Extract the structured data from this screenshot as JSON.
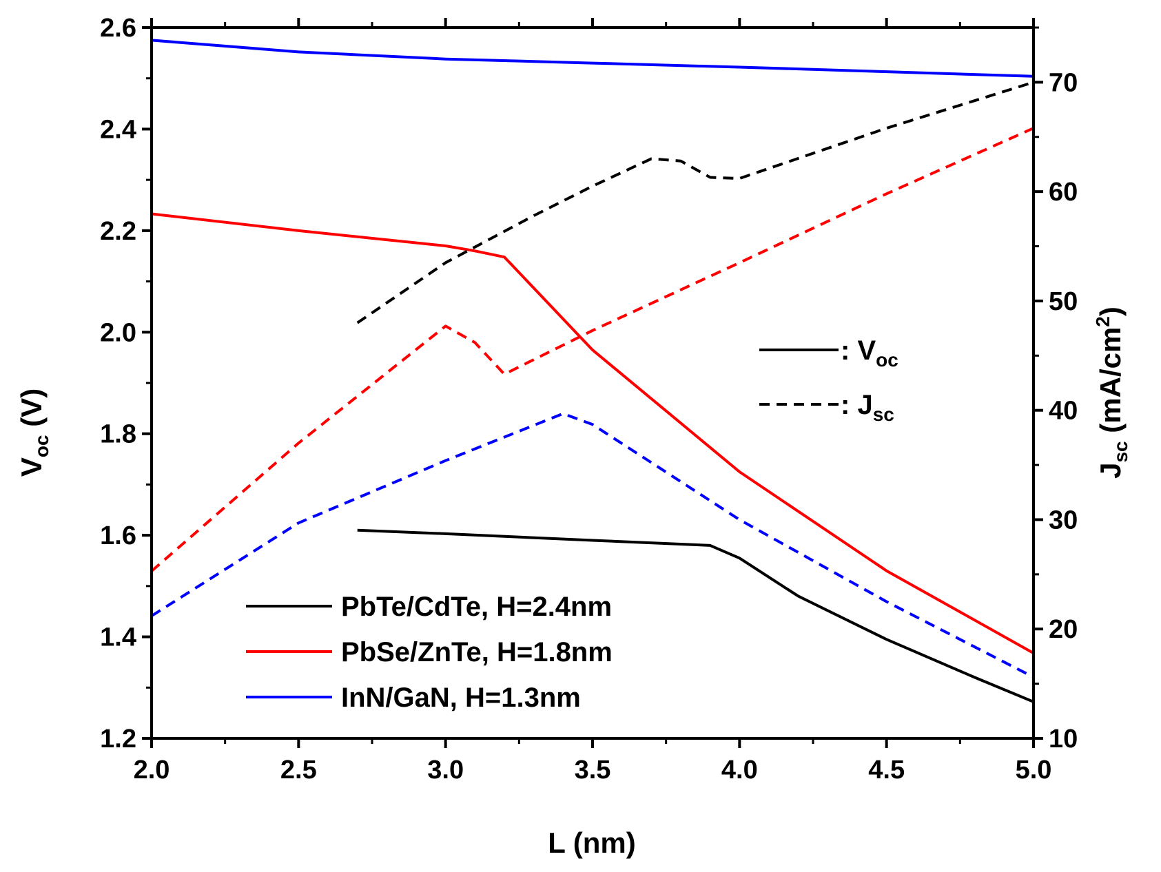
{
  "chart_data": {
    "type": "line",
    "dual_axis": true,
    "xlabel": "L (nm)",
    "ylabel_left": {
      "main": "V",
      "sub": "oc",
      "unit": " (V)"
    },
    "ylabel_right": {
      "main": "J",
      "sub": "sc",
      "unit_pre": " (mA/cm",
      "sup": "2",
      "unit_post": ")"
    },
    "xlim": [
      2.0,
      5.0
    ],
    "ylim_left": [
      1.2,
      2.6
    ],
    "ylim_right": [
      10,
      75
    ],
    "x_ticks": [
      "2.0",
      "2.5",
      "3.0",
      "3.5",
      "4.0",
      "4.5",
      "5.0"
    ],
    "y_left_ticks": [
      "1.2",
      "1.4",
      "1.6",
      "1.8",
      "2.0",
      "2.2",
      "2.4",
      "2.6"
    ],
    "y_right_ticks": [
      "10",
      "20",
      "30",
      "40",
      "50",
      "60",
      "70"
    ],
    "series": [
      {
        "name": "PbTe/CdTe, H=2.4nm",
        "quantity": "Voc",
        "axis": "left",
        "style": "solid",
        "color": "#000000",
        "x": [
          2.7,
          3.0,
          3.5,
          3.9,
          4.0,
          4.2,
          4.5,
          4.8,
          5.0
        ],
        "y": [
          1.61,
          1.603,
          1.59,
          1.58,
          1.555,
          1.48,
          1.395,
          1.32,
          1.272
        ]
      },
      {
        "name": "PbSe/ZnTe, H=1.8nm",
        "quantity": "Voc",
        "axis": "left",
        "style": "solid",
        "color": "#ff0000",
        "x": [
          2.0,
          2.5,
          3.0,
          3.1,
          3.2,
          3.5,
          4.0,
          4.5,
          5.0
        ],
        "y": [
          2.233,
          2.2,
          2.17,
          2.16,
          2.148,
          1.965,
          1.725,
          1.53,
          1.368
        ]
      },
      {
        "name": "InN/GaN, H=1.3nm",
        "quantity": "Voc",
        "axis": "left",
        "style": "solid",
        "color": "#0000ff",
        "x": [
          2.0,
          2.5,
          3.0,
          3.5,
          4.0,
          4.5,
          5.0
        ],
        "y": [
          2.575,
          2.552,
          2.538,
          2.53,
          2.522,
          2.513,
          2.504
        ]
      },
      {
        "name": "PbTe/CdTe, H=2.4nm",
        "quantity": "Jsc",
        "axis": "right",
        "style": "dashed",
        "color": "#000000",
        "x": [
          2.7,
          3.0,
          3.3,
          3.5,
          3.7,
          3.8,
          3.9,
          4.0,
          4.5,
          5.0
        ],
        "y": [
          48,
          53.5,
          57.8,
          60.5,
          63,
          62.8,
          61.3,
          61.2,
          65.8,
          70
        ]
      },
      {
        "name": "PbSe/ZnTe, H=1.8nm",
        "quantity": "Jsc",
        "axis": "right",
        "style": "dashed",
        "color": "#ff0000",
        "x": [
          2.0,
          2.5,
          3.0,
          3.1,
          3.2,
          3.5,
          4.0,
          4.5,
          5.0
        ],
        "y": [
          25.3,
          37,
          47.7,
          46.2,
          43.3,
          47.3,
          53.5,
          59.8,
          65.8
        ]
      },
      {
        "name": "InN/GaN, H=1.3nm",
        "quantity": "Jsc",
        "axis": "right",
        "style": "dashed",
        "color": "#0000ff",
        "x": [
          2.0,
          2.5,
          3.0,
          3.4,
          3.5,
          4.0,
          4.5,
          5.0
        ],
        "y": [
          21.2,
          29.7,
          35.4,
          39.7,
          38.7,
          30,
          22.5,
          15.6
        ]
      }
    ],
    "style_legend": [
      {
        "style": "solid",
        "prefix": ": ",
        "main": "V",
        "sub": "oc"
      },
      {
        "style": "dashed",
        "prefix": ": ",
        "main": "J",
        "sub": "sc"
      }
    ],
    "legend": [
      {
        "label": "PbTe/CdTe, H=2.4nm",
        "color": "#000000"
      },
      {
        "label": "PbSe/ZnTe, H=1.8nm",
        "color": "#ff0000"
      },
      {
        "label": "InN/GaN, H=1.3nm",
        "color": "#0000ff"
      }
    ],
    "legend_position": "bottom-left",
    "style_legend_position": "center-right",
    "grid": false
  }
}
